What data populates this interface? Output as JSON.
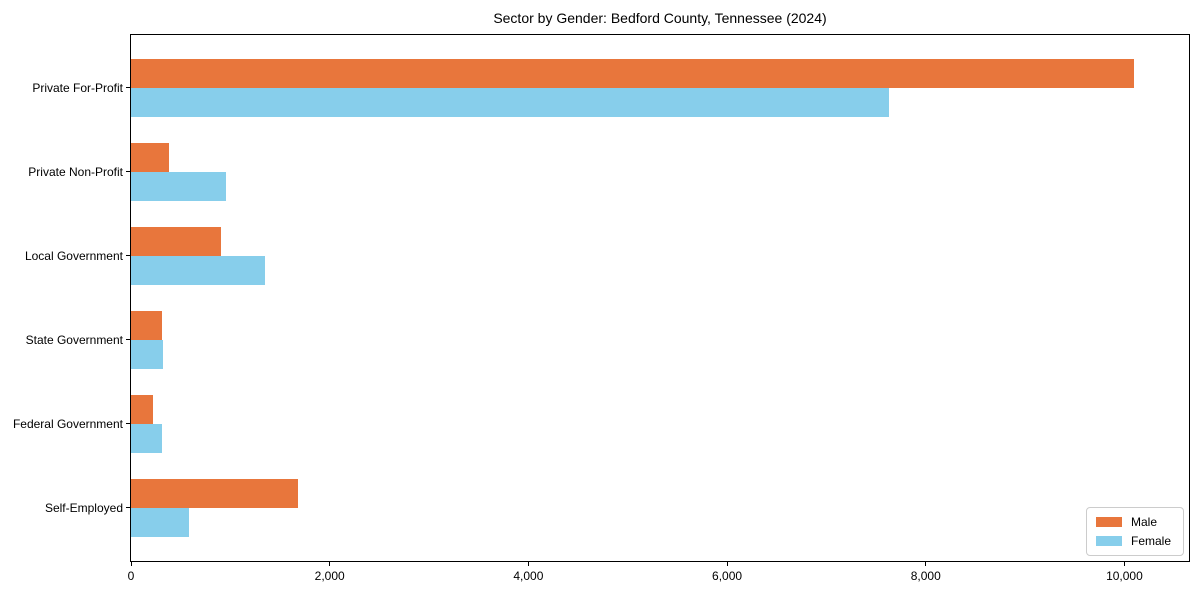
{
  "chart_data": {
    "type": "bar",
    "orientation": "horizontal",
    "title": "Sector by Gender: Bedford County, Tennessee (2024)",
    "categories": [
      "Private For-Profit",
      "Private Non-Profit",
      "Local Government",
      "State Government",
      "Federal Government",
      "Self-Employed"
    ],
    "series": [
      {
        "name": "Male",
        "color": "#e8763c",
        "values": [
          10100,
          380,
          910,
          310,
          220,
          1680
        ]
      },
      {
        "name": "Female",
        "color": "#87ceeb",
        "values": [
          7630,
          960,
          1350,
          320,
          310,
          580
        ]
      }
    ],
    "xlabel": "",
    "ylabel": "",
    "xlim": [
      0,
      10650
    ],
    "xticks": [
      0,
      2000,
      4000,
      6000,
      8000,
      10000
    ],
    "xticklabels": [
      "0",
      "2,000",
      "4,000",
      "6,000",
      "8,000",
      "10,000"
    ],
    "legend_position": "lower-right",
    "grid": false,
    "axis_color": "#000000",
    "text_color": "#000000",
    "background_color": "#ffffff"
  }
}
